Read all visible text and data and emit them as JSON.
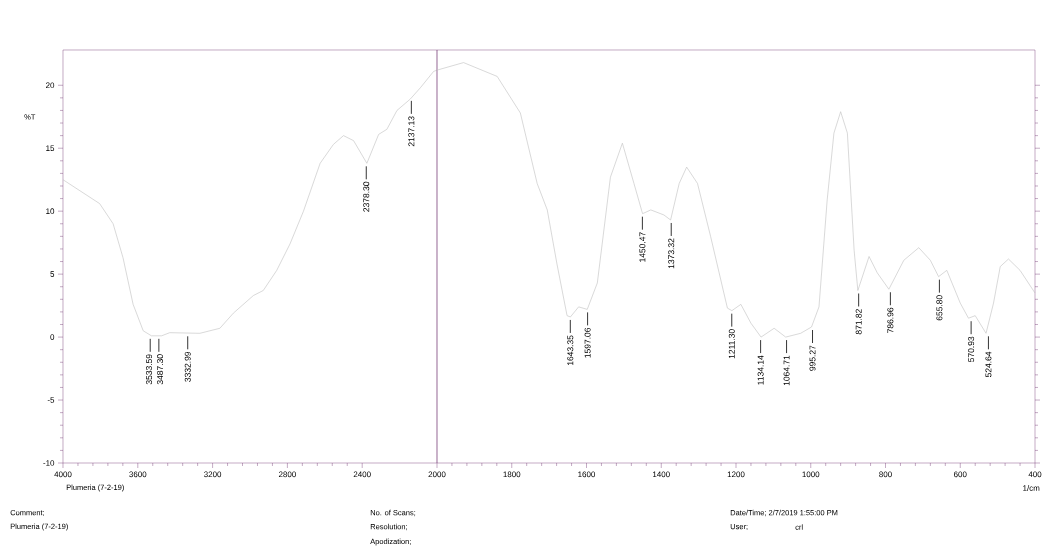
{
  "chart_data": [
    {
      "type": "line",
      "ylabel": "%T",
      "color": "#c0c0c0",
      "xlim": [
        4000,
        2000
      ],
      "xticks": [
        4000,
        3600,
        3200,
        2800,
        2400
      ],
      "ylim": [
        -10,
        22.8
      ],
      "yticks": [
        -10,
        -5,
        0,
        5,
        10,
        15,
        20
      ],
      "marker": "none",
      "x": [
        4000,
        3804,
        3732,
        3679,
        3625,
        3571,
        3527,
        3473,
        3429,
        3268,
        3161,
        3089,
        2982,
        2929,
        2857,
        2786,
        2714,
        2625,
        2554,
        2500,
        2446,
        2375,
        2312,
        2268,
        2214,
        2143,
        2089,
        2018,
        2000
      ],
      "values": [
        12.5,
        10.6,
        9.0,
        6.3,
        2.6,
        0.5,
        0.1,
        0.1,
        0.35,
        0.3,
        0.7,
        1.9,
        3.3,
        3.7,
        5.3,
        7.4,
        10.0,
        13.8,
        15.3,
        16.0,
        15.6,
        13.8,
        16.1,
        16.5,
        18.0,
        18.9,
        19.8,
        21.1,
        21.2
      ],
      "annotations": [
        {
          "text": "3533.59",
          "x": 3533.59,
          "y": 0.1
        },
        {
          "text": "3487.30",
          "x": 3487.3,
          "y": 0.1
        },
        {
          "text": "3332.99",
          "x": 3332.99,
          "y": 0.3
        },
        {
          "text": "2378.30",
          "x": 2378.3,
          "y": 13.8
        },
        {
          "text": "2137.13",
          "x": 2137.13,
          "y": 19.0
        },
        "Plumeria  (7-2-19)",
        "Comment;",
        "Plumeria  (7-2-19)",
        "No. of Scans;",
        "Resolution;",
        "Apodization;",
        "Date/Time; 2/7/2019 1:55:00 PM",
        "User;",
        "crl"
      ]
    },
    {
      "type": "line",
      "xlabel": "1/cm",
      "color": "#c0c0c0",
      "xlim": [
        2000,
        400
      ],
      "xticks": [
        2000,
        1800,
        1600,
        1400,
        1200,
        1000,
        800,
        600,
        400
      ],
      "ylim": [
        -10,
        22.8
      ],
      "yticks": [
        -10,
        -5,
        0,
        5,
        10,
        15,
        20
      ],
      "tick_labels": "x",
      "marker": "none",
      "x": [
        2000,
        1929,
        1839,
        1777,
        1732,
        1705,
        1679,
        1652,
        1643,
        1621,
        1598,
        1571,
        1536,
        1504,
        1473,
        1450,
        1428,
        1393,
        1375,
        1352,
        1332,
        1303,
        1268,
        1223,
        1211,
        1187,
        1160,
        1133,
        1098,
        1067,
        1027,
        998,
        978,
        956,
        938,
        920,
        902,
        884,
        874,
        844,
        822,
        791,
        751,
        711,
        680,
        658,
        636,
        600,
        578,
        560,
        531,
        511,
        493,
        471,
        440,
        400
      ],
      "values": [
        21.2,
        21.8,
        20.7,
        17.8,
        12.2,
        10.1,
        5.8,
        1.7,
        1.6,
        2.4,
        2.2,
        4.3,
        12.7,
        15.4,
        12.2,
        9.8,
        10.1,
        9.7,
        9.3,
        12.2,
        13.5,
        12.2,
        8.0,
        2.3,
        2.1,
        2.6,
        1.1,
        0.0,
        0.7,
        0.0,
        0.3,
        0.8,
        2.4,
        10.9,
        16.2,
        17.9,
        16.2,
        6.9,
        3.7,
        6.4,
        5.1,
        3.8,
        6.1,
        7.1,
        6.1,
        4.8,
        5.3,
        2.7,
        1.5,
        1.7,
        0.3,
        2.7,
        5.6,
        6.2,
        5.3,
        3.5
      ],
      "annotations": [
        {
          "text": "1643.35",
          "x": 1643.35,
          "y": 1.6
        },
        {
          "text": "1597.06",
          "x": 1597.06,
          "y": 2.2
        },
        {
          "text": "1450.47",
          "x": 1450.47,
          "y": 9.8
        },
        {
          "text": "1373.32",
          "x": 1373.32,
          "y": 9.3
        },
        {
          "text": "1211.30",
          "x": 1211.3,
          "y": 2.1
        },
        {
          "text": "1134.14",
          "x": 1134.14,
          "y": 0.0
        },
        {
          "text": "1064.71",
          "x": 1064.71,
          "y": 0.0
        },
        {
          "text": "995.27",
          "x": 995.27,
          "y": 0.8
        },
        {
          "text": "871.82",
          "x": 871.82,
          "y": 3.7
        },
        {
          "text": "786.96",
          "x": 786.96,
          "y": 3.8
        },
        {
          "text": "655.80",
          "x": 655.8,
          "y": 4.8
        },
        {
          "text": "570.93",
          "x": 570.93,
          "y": 1.5
        },
        {
          "text": "524.64",
          "x": 524.64,
          "y": 0.3
        }
      ]
    }
  ]
}
